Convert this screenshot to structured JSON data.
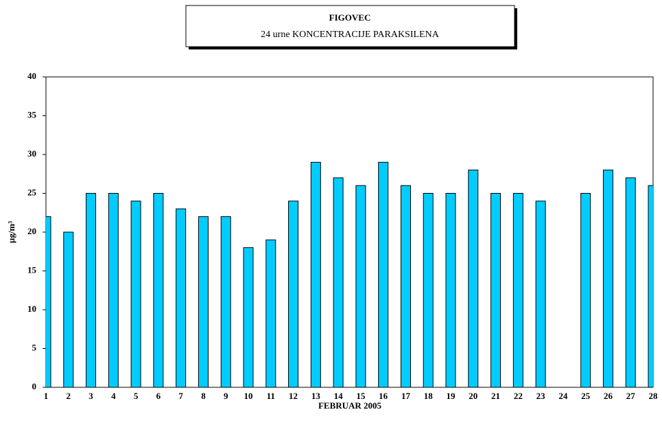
{
  "chart_data": {
    "type": "bar",
    "title": "FIGOVEC",
    "subtitle": "24 urne KONCENTRACIJE PARAKSILENA",
    "x_label": "FEBRUAR 2005",
    "y_label": "µg/m³",
    "categories": [
      "1",
      "2",
      "3",
      "4",
      "5",
      "6",
      "7",
      "8",
      "9",
      "10",
      "11",
      "12",
      "13",
      "14",
      "15",
      "16",
      "17",
      "18",
      "19",
      "20",
      "21",
      "22",
      "23",
      "24",
      "25",
      "26",
      "27",
      "28"
    ],
    "values": [
      22,
      20,
      25,
      25,
      24,
      25,
      23,
      22,
      22,
      18,
      19,
      24,
      29,
      27,
      26,
      29,
      26,
      25,
      25,
      28,
      25,
      25,
      24,
      null,
      25,
      28,
      27,
      26
    ],
    "color": "#00ccff",
    "ylim": [
      0,
      40
    ],
    "yticks": [
      0,
      5,
      10,
      15,
      20,
      25,
      30,
      35,
      40
    ],
    "grid": false
  }
}
